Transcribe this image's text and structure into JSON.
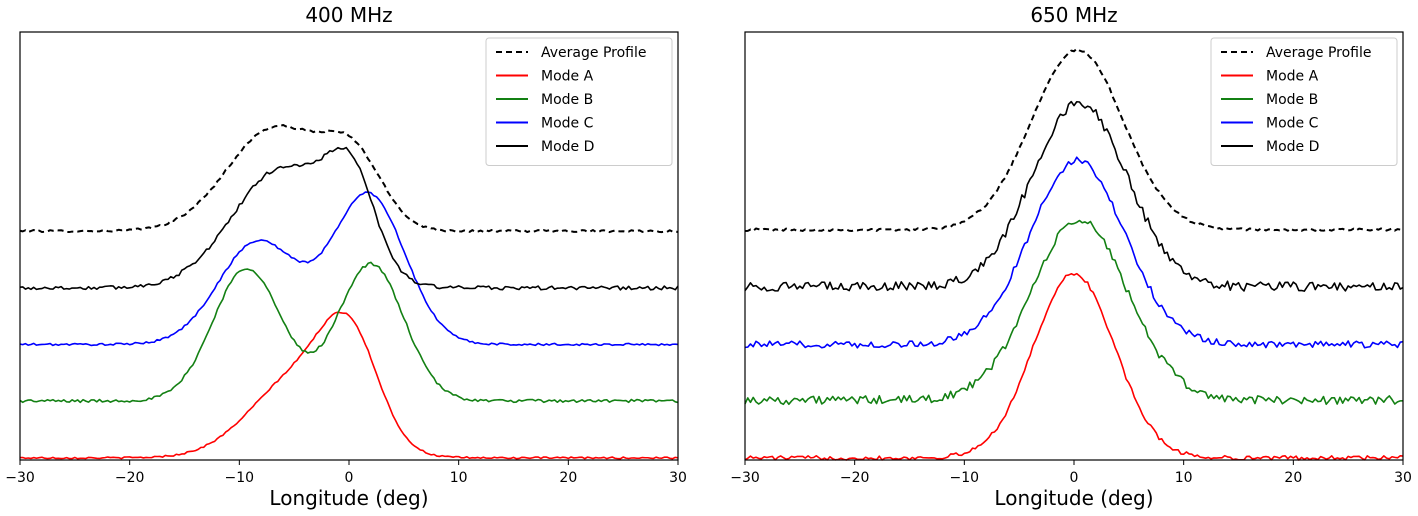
{
  "chart_data": [
    {
      "type": "line",
      "title": "400 MHz",
      "xlabel": "Longitude (deg)",
      "ylabel": "",
      "xlim": [
        -30,
        30
      ],
      "ylim": [
        0,
        1
      ],
      "xticks": [
        "−30",
        "−20",
        "−10",
        "0",
        "10",
        "20",
        "30"
      ],
      "yticks_shown": false,
      "legend_position": "top-right",
      "series": [
        {
          "name": "Average Profile",
          "color": "#000000",
          "style": "dashed",
          "offset": 0.535,
          "noise": 0.0025,
          "components": [
            {
              "amp": 0.155,
              "mu": 0.4,
              "sigma": 2.7
            },
            {
              "amp": 0.24,
              "mu": -6.8,
              "sigma": 4.3
            }
          ]
        },
        {
          "name": "Mode A",
          "color": "#ff0000",
          "style": "solid",
          "offset": 0.005,
          "noise": 0.002,
          "components": [
            {
              "amp": 0.22,
              "mu": 0.1,
              "sigma": 2.6
            },
            {
              "amp": 0.19,
              "mu": -4.5,
              "sigma": 4.4
            }
          ]
        },
        {
          "name": "Mode B",
          "color": "#138013",
          "style": "solid",
          "offset": 0.138,
          "noise": 0.0035,
          "components": [
            {
              "amp": 0.32,
              "mu": 2.0,
              "sigma": 3.0
            },
            {
              "amp": 0.31,
              "mu": -9.3,
              "sigma": 3.1
            }
          ]
        },
        {
          "name": "Mode C",
          "color": "#0000ff",
          "style": "solid",
          "offset": 0.27,
          "noise": 0.0025,
          "components": [
            {
              "amp": 0.35,
              "mu": 1.8,
              "sigma": 3.3
            },
            {
              "amp": 0.24,
              "mu": -8.3,
              "sigma": 3.6
            }
          ]
        },
        {
          "name": "Mode D",
          "color": "#000000",
          "style": "solid",
          "offset": 0.402,
          "noise": 0.0045,
          "components": [
            {
              "amp": 0.2,
              "mu": 0.2,
              "sigma": 2.2
            },
            {
              "amp": 0.28,
              "mu": -6.0,
              "sigma": 4.6
            }
          ]
        }
      ]
    },
    {
      "type": "line",
      "title": "650 MHz",
      "xlabel": "Longitude (deg)",
      "ylabel": "",
      "xlim": [
        -30,
        30
      ],
      "ylim": [
        0,
        1
      ],
      "xticks": [
        "−30",
        "−20",
        "−10",
        "0",
        "10",
        "20",
        "30"
      ],
      "yticks_shown": false,
      "legend_position": "top-right",
      "series": [
        {
          "name": "Average Profile",
          "color": "#000000",
          "style": "dashed",
          "offset": 0.538,
          "noise": 0.003,
          "components": [
            {
              "amp": 0.42,
              "mu": 0.3,
              "sigma": 4.2
            }
          ]
        },
        {
          "name": "Mode A",
          "color": "#ff0000",
          "style": "solid",
          "offset": 0.005,
          "noise": 0.005,
          "components": [
            {
              "amp": 0.43,
              "mu": 0.0,
              "sigma": 3.7
            }
          ]
        },
        {
          "name": "Mode B",
          "color": "#138013",
          "style": "solid",
          "offset": 0.14,
          "noise": 0.01,
          "components": [
            {
              "amp": 0.42,
              "mu": 0.5,
              "sigma": 4.4
            }
          ]
        },
        {
          "name": "Mode C",
          "color": "#0000ff",
          "style": "solid",
          "offset": 0.27,
          "noise": 0.008,
          "components": [
            {
              "amp": 0.43,
              "mu": 0.3,
              "sigma": 4.3
            }
          ]
        },
        {
          "name": "Mode D",
          "color": "#000000",
          "style": "solid",
          "offset": 0.405,
          "noise": 0.011,
          "components": [
            {
              "amp": 0.43,
              "mu": 0.5,
              "sigma": 4.3
            }
          ]
        }
      ]
    }
  ]
}
